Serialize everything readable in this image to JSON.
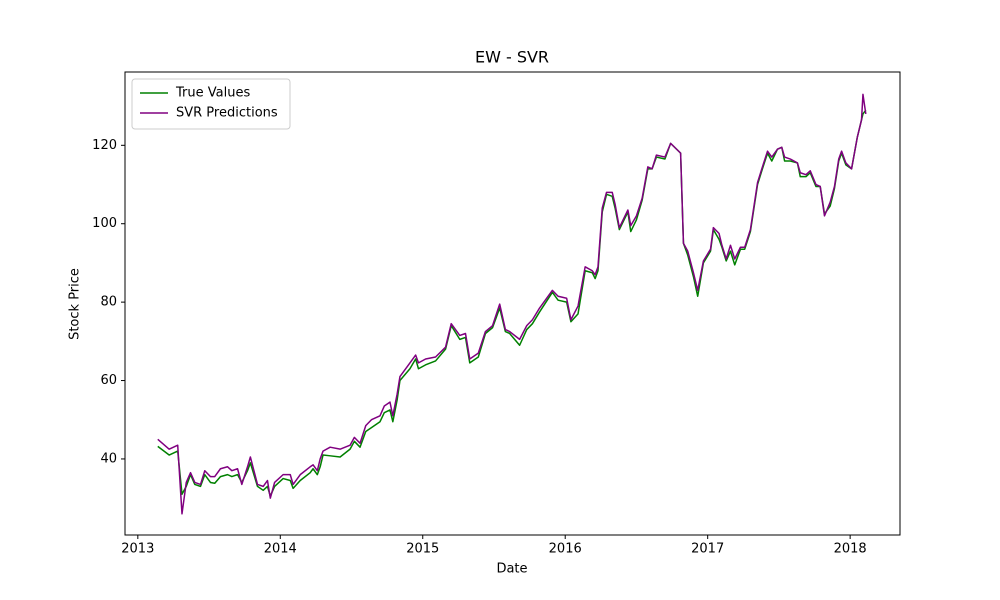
{
  "chart_data": {
    "type": "line",
    "title": "EW - SVR",
    "xlabel": "Date",
    "ylabel": "Stock Price",
    "x": [
      2013.14,
      2013.22,
      2013.28,
      2013.31,
      2013.34,
      2013.37,
      2013.4,
      2013.44,
      2013.47,
      2013.51,
      2013.54,
      2013.58,
      2013.63,
      2013.66,
      2013.7,
      2013.73,
      2013.77,
      2013.79,
      2013.84,
      2013.88,
      2013.91,
      2013.93,
      2013.96,
      2014.02,
      2014.07,
      2014.09,
      2014.14,
      2014.21,
      2014.23,
      2014.26,
      2014.28,
      2014.3,
      2014.35,
      2014.42,
      2014.49,
      2014.52,
      2014.56,
      2014.6,
      2014.64,
      2014.7,
      2014.73,
      2014.77,
      2014.79,
      2014.82,
      2014.84,
      2014.91,
      2014.95,
      2014.97,
      2015.02,
      2015.09,
      2015.16,
      2015.2,
      2015.26,
      2015.3,
      2015.33,
      2015.39,
      2015.44,
      2015.49,
      2015.54,
      2015.58,
      2015.61,
      2015.68,
      2015.73,
      2015.77,
      2015.82,
      2015.91,
      2015.95,
      2016.01,
      2016.04,
      2016.09,
      2016.14,
      2016.19,
      2016.21,
      2016.23,
      2016.26,
      2016.29,
      2016.33,
      2016.35,
      2016.38,
      2016.42,
      2016.44,
      2016.46,
      2016.5,
      2016.54,
      2016.58,
      2016.61,
      2016.64,
      2016.7,
      2016.74,
      2016.81,
      2016.83,
      2016.86,
      2016.9,
      2016.93,
      2016.97,
      2017.02,
      2017.04,
      2017.08,
      2017.1,
      2017.13,
      2017.16,
      2017.19,
      2017.23,
      2017.26,
      2017.3,
      2017.35,
      2017.38,
      2017.42,
      2017.45,
      2017.49,
      2017.52,
      2017.54,
      2017.58,
      2017.63,
      2017.65,
      2017.69,
      2017.72,
      2017.76,
      2017.79,
      2017.82,
      2017.86,
      2017.89,
      2017.92,
      2017.94,
      2017.97,
      2018.01,
      2018.05,
      2018.08,
      2018.09,
      2018.11
    ],
    "series": [
      {
        "name": "True Values",
        "color": "#008000",
        "values": [
          43.2,
          41.0,
          42.0,
          31.0,
          33.0,
          36.0,
          33.5,
          33.0,
          36.0,
          34.0,
          33.8,
          35.5,
          36.0,
          35.5,
          36.0,
          34.0,
          37.0,
          39.0,
          33.0,
          32.0,
          33.0,
          30.5,
          33.0,
          35.0,
          34.5,
          32.5,
          34.5,
          36.5,
          37.5,
          36.0,
          38.0,
          41.0,
          40.8,
          40.5,
          42.5,
          44.5,
          43.0,
          47.0,
          48.0,
          49.5,
          51.8,
          52.5,
          49.5,
          55.0,
          60.0,
          63.0,
          65.5,
          63.0,
          64.0,
          65.0,
          68.0,
          74.0,
          70.5,
          71.0,
          64.5,
          66.0,
          72.0,
          73.5,
          78.5,
          72.5,
          72.0,
          69.0,
          73.0,
          74.5,
          77.5,
          82.5,
          80.5,
          80.0,
          75.0,
          77.0,
          88.0,
          87.5,
          86.0,
          88.0,
          103.0,
          107.5,
          107.0,
          104.0,
          98.5,
          101.5,
          103.0,
          98.0,
          101.0,
          106.0,
          114.0,
          114.0,
          117.0,
          116.5,
          120.5,
          118.0,
          95.0,
          92.0,
          86.5,
          81.5,
          90.0,
          93.0,
          98.5,
          96.0,
          94.0,
          90.5,
          93.0,
          89.5,
          93.5,
          93.5,
          98.0,
          110.0,
          113.5,
          118.0,
          116.0,
          119.0,
          119.5,
          116.0,
          116.0,
          115.5,
          112.0,
          112.0,
          113.0,
          109.5,
          109.5,
          102.5,
          104.5,
          109.0,
          116.0,
          118.0,
          115.0,
          114.0,
          122.0,
          126.5,
          128.0,
          129.0
        ]
      },
      {
        "name": "SVR Predictions",
        "color": "#800080",
        "values": [
          45.0,
          42.5,
          43.5,
          26.0,
          34.0,
          36.5,
          34.0,
          33.5,
          37.0,
          35.5,
          35.5,
          37.5,
          38.0,
          37.0,
          37.5,
          33.5,
          38.0,
          40.5,
          33.5,
          33.0,
          34.5,
          30.0,
          34.0,
          36.0,
          36.0,
          33.5,
          36.0,
          38.0,
          38.5,
          37.0,
          40.0,
          42.0,
          43.0,
          42.5,
          43.5,
          45.5,
          44.0,
          48.5,
          50.0,
          51.0,
          53.5,
          54.5,
          51.0,
          56.5,
          61.0,
          64.5,
          66.5,
          64.5,
          65.5,
          66.0,
          68.5,
          74.5,
          71.5,
          72.0,
          65.5,
          67.0,
          72.5,
          74.0,
          79.5,
          73.0,
          72.5,
          70.5,
          74.0,
          75.5,
          78.5,
          83.0,
          81.5,
          81.0,
          75.5,
          79.0,
          89.0,
          88.0,
          87.0,
          89.0,
          104.0,
          108.0,
          108.0,
          105.0,
          99.0,
          102.0,
          103.5,
          99.5,
          102.0,
          106.5,
          114.5,
          114.0,
          117.5,
          117.0,
          120.5,
          118.0,
          95.0,
          93.0,
          87.5,
          83.0,
          90.5,
          93.5,
          99.0,
          97.5,
          94.5,
          91.0,
          94.5,
          91.0,
          94.0,
          94.0,
          98.5,
          110.5,
          114.0,
          118.5,
          117.0,
          119.0,
          119.5,
          117.0,
          116.5,
          115.5,
          113.0,
          112.5,
          113.5,
          110.0,
          109.5,
          102.0,
          105.5,
          109.5,
          116.5,
          118.5,
          115.5,
          114.0,
          122.0,
          126.5,
          133.0,
          128.0
        ]
      }
    ],
    "xlim": [
      2012.91,
      2018.35
    ],
    "ylim": [
      20.6,
      138.7
    ],
    "xticks": [
      2013,
      2014,
      2015,
      2016,
      2017,
      2018
    ],
    "yticks": [
      40,
      60,
      80,
      100,
      120
    ],
    "legend": "upper left"
  }
}
